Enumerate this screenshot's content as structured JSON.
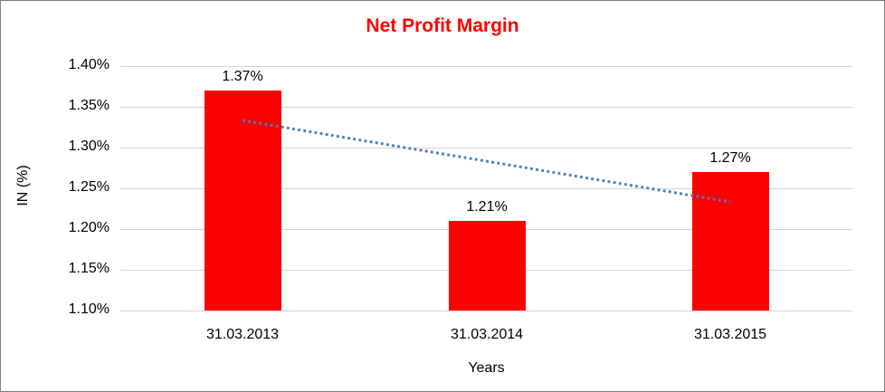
{
  "frame": {
    "background": "#ffffff",
    "border_color": "#808080"
  },
  "chart_data": {
    "type": "bar",
    "title": "Net Profit Margin",
    "title_color": "#ff0000",
    "xlabel": "Years",
    "ylabel": "IN (%)",
    "categories": [
      "31.03.2013",
      "31.03.2014",
      "31.03.2015"
    ],
    "values": [
      1.37,
      1.21,
      1.27
    ],
    "value_labels": [
      "1.37%",
      "1.21%",
      "1.27%"
    ],
    "bar_color": "#ff0000",
    "ylim": [
      1.1,
      1.4
    ],
    "ytick_step": 0.05,
    "ytick_labels": [
      "1.40%",
      "1.35%",
      "1.30%",
      "1.25%",
      "1.20%",
      "1.15%",
      "1.10%"
    ],
    "grid": true,
    "gridline_color": "#d3d3d3",
    "legend": "none",
    "trendline": {
      "kind": "linear",
      "style": "dotted",
      "color": "#4a7ebb",
      "start_value": 1.3333,
      "end_value": 1.2333
    }
  }
}
